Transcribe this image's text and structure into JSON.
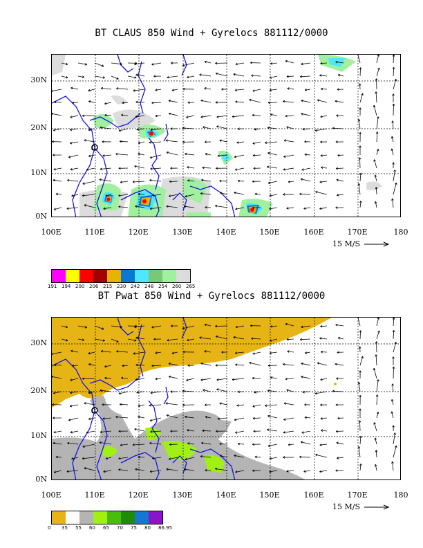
{
  "panel1": {
    "title": "BT CLAUS 850 Wind + Gyrelocs 881112/0000",
    "lat_labels": [
      "30N",
      "20N",
      "10N",
      "0N"
    ],
    "lon_labels": [
      "100E",
      "110E",
      "120E",
      "130E",
      "140E",
      "150E",
      "160E",
      "170E",
      "180"
    ],
    "ref_vector": "15 M/S",
    "colorbar": {
      "colors": [
        "#ff00ff",
        "#ffff00",
        "#ff0000",
        "#a00000",
        "#e6b400",
        "#0a78d2",
        "#50e6ff",
        "#78c878",
        "#a0f0a0",
        "#dcdcdc"
      ],
      "labels": [
        "191",
        "194",
        "200",
        "206",
        "215",
        "230",
        "242",
        "248",
        "254",
        "260",
        "265"
      ]
    }
  },
  "panel2": {
    "title": "BT Pwat 850 Wind + Gyrelocs 881112/0000",
    "lat_labels": [
      "30N",
      "20N",
      "10N",
      "0N"
    ],
    "lon_labels": [
      "100E",
      "110E",
      "120E",
      "130E",
      "140E",
      "150E",
      "160E",
      "170E",
      "180"
    ],
    "ref_vector": "15 M/S",
    "colorbar": {
      "colors": [
        "#e6b414",
        "#ffffff",
        "#b4b4b4",
        "#a0f014",
        "#46be0a",
        "#1e8c0a",
        "#1478d2",
        "#8c14c8"
      ],
      "labels": [
        "0",
        "35",
        "55",
        "60",
        "65",
        "70",
        "75",
        "80",
        "86.95"
      ]
    }
  },
  "map_colors": {
    "coast": "#1414e6",
    "gyre_marker": "#1e8c0a"
  }
}
